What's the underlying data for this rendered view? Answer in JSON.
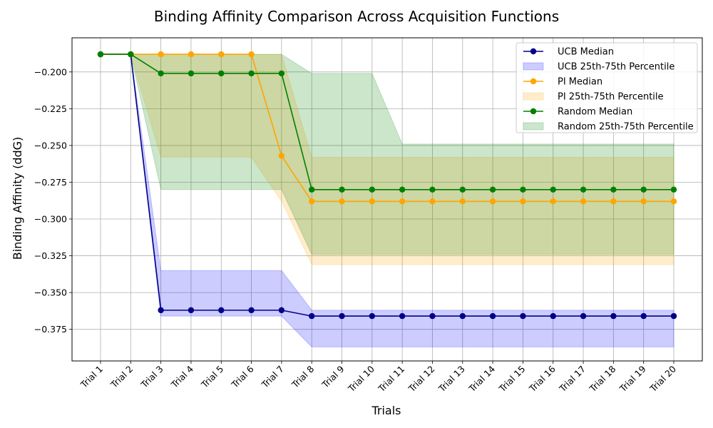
{
  "chart_data": {
    "type": "line",
    "title": "Binding Affinity Comparison Across Acquisition Functions",
    "xlabel": "Trials",
    "ylabel": "Binding Affinity (ddG)",
    "categories": [
      "Trial 1",
      "Trial 2",
      "Trial 3",
      "Trial 4",
      "Trial 5",
      "Trial 6",
      "Trial 7",
      "Trial 8",
      "Trial 9",
      "Trial 10",
      "Trial 11",
      "Trial 12",
      "Trial 13",
      "Trial 14",
      "Trial 15",
      "Trial 16",
      "Trial 17",
      "Trial 18",
      "Trial 19",
      "Trial 20"
    ],
    "ylim": [
      -0.3965,
      -0.1768
    ],
    "yticks": [
      -0.375,
      -0.35,
      -0.325,
      -0.3,
      -0.275,
      -0.25,
      -0.225,
      -0.2
    ],
    "ytick_labels": [
      "−0.375",
      "−0.350",
      "−0.325",
      "−0.300",
      "−0.275",
      "−0.250",
      "−0.225",
      "−0.200"
    ],
    "grid": true,
    "legend_position": "top-right",
    "series": [
      {
        "name": "UCB Median",
        "band_name": "UCB 25th-75th Percentile",
        "color": "#00008b",
        "band_color": "#0000ff",
        "band_opacity": 0.2,
        "median": [
          -0.188,
          -0.188,
          -0.362,
          -0.362,
          -0.362,
          -0.362,
          -0.362,
          -0.366,
          -0.366,
          -0.366,
          -0.366,
          -0.366,
          -0.366,
          -0.366,
          -0.366,
          -0.366,
          -0.366,
          -0.366,
          -0.366,
          -0.366
        ],
        "q25": [
          -0.188,
          -0.188,
          -0.366,
          -0.366,
          -0.366,
          -0.366,
          -0.366,
          -0.387,
          -0.387,
          -0.387,
          -0.387,
          -0.387,
          -0.387,
          -0.387,
          -0.387,
          -0.387,
          -0.387,
          -0.387,
          -0.387,
          -0.387
        ],
        "q75": [
          -0.188,
          -0.188,
          -0.335,
          -0.335,
          -0.335,
          -0.335,
          -0.335,
          -0.362,
          -0.362,
          -0.362,
          -0.362,
          -0.362,
          -0.362,
          -0.362,
          -0.362,
          -0.362,
          -0.362,
          -0.362,
          -0.362,
          -0.362
        ]
      },
      {
        "name": "PI Median",
        "band_name": "PI 25th-75th Percentile",
        "color": "#ffa500",
        "band_color": "#ffa500",
        "band_opacity": 0.2,
        "median": [
          -0.188,
          -0.188,
          -0.188,
          -0.188,
          -0.188,
          -0.188,
          -0.257,
          -0.288,
          -0.288,
          -0.288,
          -0.288,
          -0.288,
          -0.288,
          -0.288,
          -0.288,
          -0.288,
          -0.288,
          -0.288,
          -0.288,
          -0.288
        ],
        "q25": [
          -0.188,
          -0.188,
          -0.258,
          -0.258,
          -0.258,
          -0.258,
          -0.288,
          -0.331,
          -0.331,
          -0.331,
          -0.331,
          -0.331,
          -0.331,
          -0.331,
          -0.331,
          -0.331,
          -0.331,
          -0.331,
          -0.331,
          -0.331
        ],
        "q75": [
          -0.188,
          -0.188,
          -0.188,
          -0.188,
          -0.188,
          -0.188,
          -0.188,
          -0.258,
          -0.258,
          -0.258,
          -0.258,
          -0.258,
          -0.258,
          -0.258,
          -0.258,
          -0.258,
          -0.258,
          -0.258,
          -0.258,
          -0.258
        ]
      },
      {
        "name": "Random Median",
        "band_name": "Random 25th-75th Percentile",
        "color": "#008000",
        "band_color": "#008000",
        "band_opacity": 0.2,
        "median": [
          -0.188,
          -0.188,
          -0.201,
          -0.201,
          -0.201,
          -0.201,
          -0.201,
          -0.28,
          -0.28,
          -0.28,
          -0.28,
          -0.28,
          -0.28,
          -0.28,
          -0.28,
          -0.28,
          -0.28,
          -0.28,
          -0.28,
          -0.28
        ],
        "q25": [
          -0.188,
          -0.188,
          -0.28,
          -0.28,
          -0.28,
          -0.28,
          -0.28,
          -0.324,
          -0.324,
          -0.324,
          -0.324,
          -0.324,
          -0.324,
          -0.324,
          -0.324,
          -0.324,
          -0.324,
          -0.324,
          -0.324,
          -0.324
        ],
        "q75": [
          -0.188,
          -0.188,
          -0.188,
          -0.188,
          -0.188,
          -0.188,
          -0.188,
          -0.201,
          -0.201,
          -0.201,
          -0.249,
          -0.249,
          -0.249,
          -0.249,
          -0.249,
          -0.249,
          -0.249,
          -0.249,
          -0.249,
          -0.249
        ]
      }
    ]
  }
}
